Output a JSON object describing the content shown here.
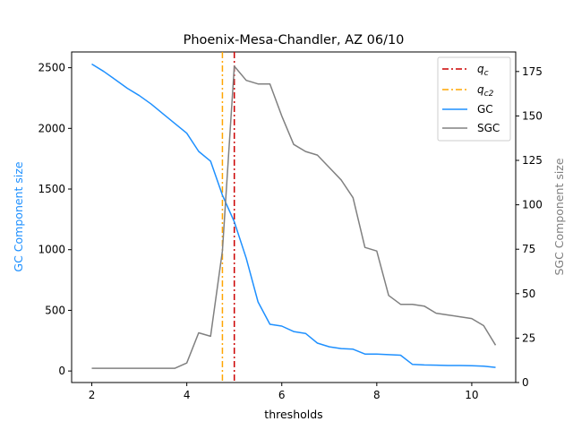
{
  "chart_data": {
    "type": "line",
    "title": "Phoenix-Mesa-Chandler, AZ 06/10",
    "xlabel": "thresholds",
    "ylabel_left": "GC Component size",
    "ylabel_right": "SGC Component size",
    "xlim": [
      1.575,
      10.925
    ],
    "ylim_left": [
      -95,
      2630
    ],
    "ylim_right": [
      0,
      186
    ],
    "xticks": [
      2,
      4,
      6,
      8,
      10
    ],
    "yticks_left": [
      0,
      500,
      1000,
      1500,
      2000,
      2500
    ],
    "yticks_right": [
      0,
      25,
      50,
      75,
      100,
      125,
      150,
      175
    ],
    "grid": false,
    "legend_position": "top-right",
    "vlines": [
      {
        "name": "q_c",
        "x": 5.0,
        "color": "#cc0000",
        "style": "dashdot"
      },
      {
        "name": "q_c2",
        "x": 4.75,
        "color": "#ffa500",
        "style": "dashdot"
      }
    ],
    "series": [
      {
        "name": "GC",
        "axis": "left",
        "color": "#1e90ff",
        "x": [
          2.0,
          2.25,
          2.5,
          2.75,
          3.0,
          3.25,
          3.5,
          3.75,
          4.0,
          4.25,
          4.5,
          4.75,
          5.0,
          5.25,
          5.5,
          5.75,
          6.0,
          6.25,
          6.5,
          6.75,
          7.0,
          7.25,
          7.5,
          7.75,
          8.0,
          8.25,
          8.5,
          8.75,
          9.0,
          9.25,
          9.5,
          9.75,
          10.0,
          10.25,
          10.5
        ],
        "values": [
          2530,
          2470,
          2400,
          2330,
          2270,
          2200,
          2120,
          2040,
          1960,
          1810,
          1730,
          1450,
          1230,
          930,
          570,
          385,
          370,
          325,
          310,
          230,
          200,
          185,
          180,
          140,
          140,
          135,
          130,
          55,
          50,
          48,
          45,
          45,
          43,
          40,
          30
        ]
      },
      {
        "name": "SGC",
        "axis": "right",
        "color": "#808080",
        "x": [
          2.0,
          2.25,
          2.5,
          2.75,
          3.0,
          3.25,
          3.5,
          3.75,
          4.0,
          4.25,
          4.5,
          4.75,
          5.0,
          5.25,
          5.5,
          5.75,
          6.0,
          6.25,
          6.5,
          6.75,
          7.0,
          7.25,
          7.5,
          7.75,
          8.0,
          8.25,
          8.5,
          8.75,
          9.0,
          9.25,
          9.5,
          9.75,
          10.0,
          10.25,
          10.5
        ],
        "values": [
          8,
          8,
          8,
          8,
          8,
          8,
          8,
          8,
          11,
          28,
          26,
          74,
          178,
          170,
          168,
          168,
          150,
          134,
          130,
          128,
          121,
          114,
          104,
          76,
          74,
          49,
          44,
          44,
          43,
          39,
          38,
          37,
          36,
          32,
          21
        ]
      }
    ],
    "legend": [
      "q_c",
      "q_c2",
      "GC",
      "SGC"
    ]
  }
}
